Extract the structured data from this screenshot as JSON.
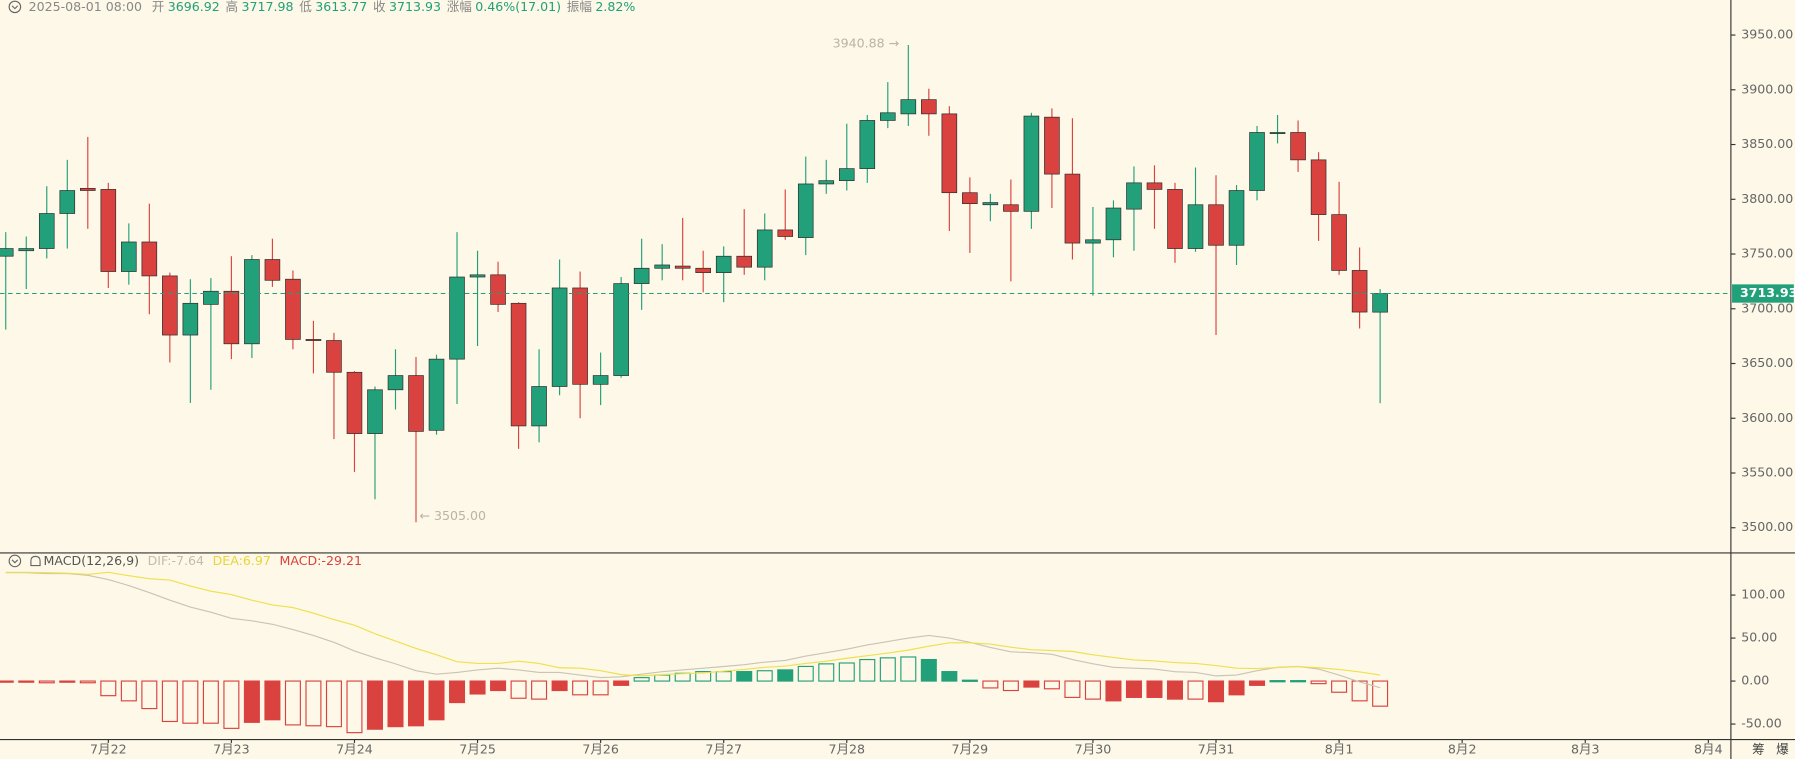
{
  "header": {
    "datetime": "2025-08-01 08:00",
    "fields": [
      {
        "label": "开",
        "value": "3696.92"
      },
      {
        "label": "高",
        "value": "3717.98"
      },
      {
        "label": "低",
        "value": "3613.77"
      },
      {
        "label": "收",
        "value": "3713.93"
      },
      {
        "label": "涨幅",
        "value": "0.46%(17.01)"
      },
      {
        "label": "振幅",
        "value": "2.82%"
      }
    ]
  },
  "corner_buttons": [
    "筹",
    "爆"
  ],
  "chart_data": [
    {
      "type": "candlestick",
      "up_color": "#22a07a",
      "down_color": "#d9423f",
      "open": [
        3748,
        3753,
        3755,
        3787,
        3810,
        3809,
        3734,
        3761,
        3730,
        3676,
        3704,
        3716,
        3668,
        3745,
        3727,
        3672,
        3671,
        3642,
        3586,
        3626,
        3639,
        3589,
        3654,
        3729,
        3731,
        3705,
        3593,
        3629,
        3719,
        3631,
        3639,
        3723,
        3737,
        3739,
        3737,
        3733,
        3748,
        3738,
        3772,
        3765,
        3814,
        3817,
        3828,
        3872,
        3878,
        3891,
        3878,
        3806,
        3795,
        3795,
        3789,
        3875,
        3823,
        3760,
        3763,
        3791,
        3815,
        3809,
        3755,
        3795,
        3758,
        3808,
        3860,
        3861,
        3836,
        3786,
        3735,
        3696.92
      ],
      "high": [
        3770,
        3766,
        3812,
        3836,
        3857,
        3815,
        3778,
        3796,
        3733,
        3727,
        3728,
        3748,
        3749,
        3764,
        3735,
        3689,
        3678,
        3643,
        3629,
        3663,
        3656,
        3658,
        3770,
        3753,
        3743,
        3706,
        3663,
        3745,
        3734,
        3660,
        3729,
        3764,
        3759,
        3783,
        3753,
        3757,
        3791,
        3787,
        3809,
        3839,
        3836,
        3869,
        3877,
        3907,
        3940.88,
        3901,
        3885,
        3820,
        3805,
        3818,
        3879,
        3883,
        3874,
        3793,
        3799,
        3830,
        3831,
        3815,
        3829,
        3822,
        3813,
        3867,
        3877,
        3872,
        3843,
        3816,
        3756,
        3717.98
      ],
      "low": [
        3681,
        3718,
        3746,
        3755,
        3773,
        3719,
        3722,
        3695,
        3651,
        3614,
        3626,
        3654,
        3655,
        3720,
        3663,
        3641,
        3581,
        3551,
        3526,
        3608,
        3505,
        3585,
        3613,
        3666,
        3697,
        3572,
        3578,
        3621,
        3600,
        3612,
        3637,
        3699,
        3726,
        3726,
        3715,
        3706,
        3731,
        3726,
        3763,
        3749,
        3805,
        3808,
        3815,
        3865,
        3867,
        3858,
        3771,
        3751,
        3780,
        3725,
        3773,
        3792,
        3745,
        3712,
        3747,
        3753,
        3773,
        3742,
        3752,
        3676,
        3740,
        3799,
        3851,
        3825,
        3762,
        3731,
        3682,
        3613.77
      ],
      "close": [
        3755,
        3755,
        3787,
        3808,
        3808,
        3734,
        3761,
        3730,
        3676,
        3705,
        3716,
        3668,
        3745,
        3726,
        3672,
        3671,
        3642,
        3586,
        3626,
        3639,
        3588,
        3654,
        3729,
        3731,
        3704,
        3593,
        3629,
        3719,
        3631,
        3639,
        3723,
        3737,
        3740,
        3737,
        3733,
        3748,
        3738,
        3772,
        3766,
        3814,
        3817,
        3828,
        3872,
        3879,
        3891,
        3878,
        3806,
        3796,
        3797,
        3789,
        3876,
        3823,
        3760,
        3763,
        3792,
        3815,
        3809,
        3755,
        3795,
        3758,
        3808,
        3861,
        3861,
        3836,
        3786,
        3735,
        3697,
        3713.93
      ],
      "high_label": "3940.88 →",
      "low_label": "← 3505.00",
      "ylim": [
        3477,
        3982
      ],
      "yticks": [
        {
          "value": 3500,
          "label": "3500.00"
        },
        {
          "value": 3550,
          "label": "3550.00"
        },
        {
          "value": 3600,
          "label": "3600.00"
        },
        {
          "value": 3650,
          "label": "3650.00"
        },
        {
          "value": 3700,
          "label": "3700.00"
        },
        {
          "value": 3750,
          "label": "3750.00"
        },
        {
          "value": 3800,
          "label": "3800.00"
        },
        {
          "value": 3850,
          "label": "3850.00"
        },
        {
          "value": 3900,
          "label": "3900.00"
        },
        {
          "value": 3950,
          "label": "3950.00"
        }
      ],
      "xlim": [
        -0.28,
        84.1
      ]
    },
    {
      "type": "macd",
      "title": "MACD(12,26,9)",
      "series": [
        {
          "name": "DIF:-7.64",
          "color": "#c9c4b6",
          "values": [
            126,
            126,
            125,
            125,
            123,
            118,
            111,
            103,
            94,
            86,
            80,
            73,
            70,
            66,
            60,
            53,
            45,
            35,
            27,
            20,
            12,
            8,
            10,
            13,
            15,
            13,
            10,
            10,
            7,
            4,
            5,
            8,
            11,
            13,
            15,
            17,
            19,
            22,
            24,
            29,
            33,
            37,
            42,
            46,
            50,
            53,
            50,
            45,
            39,
            34,
            33,
            31,
            25,
            20,
            16,
            15,
            14,
            11,
            10,
            6,
            7,
            12,
            16,
            17,
            14,
            7,
            -1,
            -7.64
          ]
        },
        {
          "name": "DEA:6.97",
          "color": "#efe04c",
          "values": [
            126.5,
            126.5,
            126,
            125.5,
            124,
            126.5,
            122.5,
            119,
            117.5,
            110.5,
            104.5,
            100.5,
            94,
            88.5,
            85.5,
            79,
            71.5,
            65,
            55,
            46.5,
            38,
            30.5,
            22.5,
            20.5,
            20.5,
            23,
            20.5,
            15.5,
            15,
            12,
            7.5,
            6,
            7.5,
            8.5,
            9.5,
            11.5,
            13.5,
            16,
            17.5,
            20.5,
            23,
            26.5,
            29.5,
            32.5,
            36,
            40.5,
            44.5,
            44.5,
            43,
            39.5,
            36.5,
            35.5,
            34.5,
            30.5,
            27.5,
            24.5,
            23.5,
            21.5,
            20.5,
            18,
            15,
            14.5,
            15.75,
            16.75,
            15.5,
            13.5,
            10.5,
            6.97
          ]
        }
      ],
      "histogram": {
        "name": "MACD:-29.21",
        "up_color": "#22a07a",
        "down_color": "#d9423f",
        "values": [
          -1,
          -1,
          -2,
          -1,
          -2,
          -17,
          -23,
          -32,
          -47,
          -49,
          -49,
          -55,
          -48,
          -45,
          -51,
          -52,
          -53,
          -60,
          -56,
          -53,
          -52,
          -45,
          -25,
          -15,
          -11,
          -20,
          -21,
          -11,
          -16,
          -16,
          -5,
          4,
          7,
          9,
          11,
          11,
          11,
          12,
          13,
          17,
          20,
          21,
          25,
          27,
          28,
          25,
          11,
          1,
          -8,
          -11,
          -7,
          -9,
          -19,
          -21,
          -23,
          -19,
          -19,
          -21,
          -21,
          -24,
          -16,
          -5,
          0.5,
          0.5,
          -3,
          -13,
          -23,
          -29.21
        ],
        "hollow": [
          false,
          false,
          true,
          false,
          true,
          true,
          true,
          true,
          true,
          true,
          true,
          true,
          false,
          false,
          true,
          true,
          true,
          true,
          false,
          false,
          false,
          false,
          false,
          false,
          false,
          true,
          true,
          false,
          true,
          true,
          false,
          true,
          true,
          true,
          true,
          true,
          false,
          true,
          false,
          true,
          true,
          true,
          true,
          true,
          true,
          false,
          false,
          false,
          true,
          true,
          false,
          true,
          true,
          true,
          false,
          false,
          false,
          false,
          true,
          false,
          false,
          false,
          false,
          false,
          true,
          true,
          true,
          true
        ]
      },
      "ylim": [
        -68,
        149
      ],
      "yticks": [
        {
          "value": -50,
          "label": "-50.00"
        },
        {
          "value": 0,
          "label": "0.00"
        },
        {
          "value": 50,
          "label": "50.00"
        },
        {
          "value": 100,
          "label": "100.00"
        }
      ],
      "xlim": [
        -0.28,
        84.1
      ],
      "xticks": [
        {
          "value": 5,
          "label": "7月22"
        },
        {
          "value": 11,
          "label": "7月23"
        },
        {
          "value": 17,
          "label": "7月24"
        },
        {
          "value": 23,
          "label": "7月25"
        },
        {
          "value": 29,
          "label": "7月26"
        },
        {
          "value": 35,
          "label": "7月27"
        },
        {
          "value": 41,
          "label": "7月28"
        },
        {
          "value": 47,
          "label": "7月29"
        },
        {
          "value": 53,
          "label": "7月30"
        },
        {
          "value": 59,
          "label": "7月31"
        },
        {
          "value": 65,
          "label": "8月1"
        },
        {
          "value": 71,
          "label": "8月2"
        },
        {
          "value": 77,
          "label": "8月3"
        },
        {
          "value": 83,
          "label": "8月4"
        }
      ]
    }
  ]
}
